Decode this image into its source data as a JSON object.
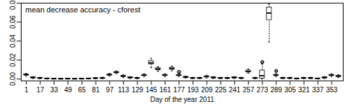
{
  "chart_data": {
    "type": "box",
    "title": "mean decrease accuracy - cforest",
    "x_label": "Day of the year 2011",
    "categories": [
      1,
      9,
      17,
      25,
      33,
      41,
      49,
      57,
      65,
      73,
      81,
      89,
      97,
      105,
      113,
      121,
      129,
      137,
      145,
      153,
      161,
      169,
      177,
      185,
      193,
      201,
      209,
      217,
      225,
      233,
      241,
      249,
      257,
      265,
      273,
      281,
      289,
      297,
      305,
      313,
      321,
      329,
      337,
      345,
      353,
      361
    ],
    "xticks": [
      1,
      17,
      33,
      49,
      65,
      81,
      97,
      113,
      129,
      145,
      161,
      177,
      193,
      209,
      225,
      241,
      257,
      273,
      289,
      305,
      321,
      337,
      353
    ],
    "median": [
      0.0045,
      0.0015,
      0.001,
      0.0005,
      0.0003,
      0.0002,
      0.0003,
      0.0002,
      0.0003,
      0.0005,
      0.0008,
      0.001,
      0.0045,
      0.007,
      0.003,
      0.0015,
      0.001,
      0.004,
      0.017,
      0.0105,
      0.004,
      0.011,
      0.004,
      0.002,
      0.001,
      0.001,
      0.0025,
      0.0015,
      0.001,
      0.001,
      0.0015,
      0.001,
      0.008,
      0.001,
      0.0035,
      0.0695,
      0.004,
      0.001,
      0.001,
      0.0005,
      0.001,
      0.001,
      0.0005,
      0.0015,
      0.004,
      0.003
    ],
    "q1": [
      0.004,
      0.001,
      0.0007,
      0.0003,
      0.0001,
      0.0001,
      0.0001,
      0.0001,
      0.0001,
      0.0003,
      0.0005,
      0.0007,
      0.004,
      0.0065,
      0.0025,
      0.001,
      0.0007,
      0.0035,
      0.0155,
      0.0095,
      0.0035,
      0.01,
      0.0035,
      0.0015,
      0.0007,
      0.0007,
      0.002,
      0.001,
      0.0007,
      0.0007,
      0.001,
      0.0007,
      0.007,
      0.0007,
      0.0005,
      0.062,
      0.0035,
      0.0007,
      0.0007,
      0.0003,
      0.0007,
      0.0007,
      0.0003,
      0.001,
      0.0035,
      0.0025
    ],
    "q3": [
      0.005,
      0.002,
      0.0013,
      0.0007,
      0.0005,
      0.0004,
      0.0005,
      0.0004,
      0.0005,
      0.0007,
      0.0011,
      0.0013,
      0.005,
      0.0075,
      0.0035,
      0.002,
      0.0013,
      0.0045,
      0.019,
      0.0115,
      0.0045,
      0.012,
      0.0045,
      0.0025,
      0.0013,
      0.0013,
      0.003,
      0.002,
      0.0013,
      0.0013,
      0.002,
      0.0013,
      0.009,
      0.0013,
      0.009,
      0.0755,
      0.0045,
      0.0013,
      0.0013,
      0.0007,
      0.0013,
      0.0013,
      0.0007,
      0.002,
      0.0045,
      0.0035
    ],
    "low": [
      0.003,
      0.0005,
      0.0003,
      0,
      0,
      0,
      0,
      0,
      0,
      0,
      0.0002,
      0.0003,
      0.003,
      0.0055,
      0.0015,
      0.0005,
      0.0003,
      0.0025,
      0.012,
      0.008,
      0.0025,
      0.0085,
      0.0025,
      0.001,
      0.0003,
      0.0003,
      0.001,
      0.0005,
      0.0003,
      0.0003,
      0.0005,
      0.0003,
      0.006,
      0.0003,
      0,
      0.039,
      0.0025,
      0.0003,
      0.0003,
      0,
      0.0003,
      0.0003,
      0,
      0.0005,
      0.0025,
      0.0015
    ],
    "high": [
      0.006,
      0.0025,
      0.0018,
      0.001,
      0.0008,
      0.0006,
      0.0008,
      0.0006,
      0.0008,
      0.001,
      0.0015,
      0.0018,
      0.006,
      0.0085,
      0.0045,
      0.0025,
      0.0018,
      0.0055,
      0.022,
      0.013,
      0.0055,
      0.0135,
      0.0055,
      0.003,
      0.0018,
      0.0018,
      0.004,
      0.0025,
      0.0018,
      0.0018,
      0.0025,
      0.0018,
      0.0105,
      0.0018,
      0.016,
      0.079,
      0.0055,
      0.0018,
      0.0018,
      0.001,
      0.0018,
      0.0018,
      0.001,
      0.0025,
      0.0055,
      0.0045
    ],
    "outliers": [
      [],
      [],
      [],
      [],
      [],
      [],
      [],
      [],
      [],
      [],
      [],
      [],
      [],
      [],
      [],
      [],
      [],
      [],
      [],
      [],
      [],
      [],
      [
        0.0075
      ],
      [],
      [],
      [],
      [],
      [],
      [],
      [],
      [],
      [],
      [],
      [],
      [
        0.018
      ],
      [],
      [
        0.0085
      ],
      [],
      [],
      [],
      [],
      [],
      [],
      [],
      [],
      []
    ],
    "ylim": [
      -0.002,
      0.08
    ],
    "yticks": [
      {
        "value": 0,
        "label": "0.00"
      },
      {
        "value": 0.02,
        "label": "0.02"
      },
      {
        "value": 0.04,
        "label": "0.04"
      },
      {
        "value": 0.06,
        "label": "0.06"
      },
      {
        "value": 0.08,
        "label": "0.08"
      }
    ],
    "color": "#000000",
    "grid": false
  }
}
